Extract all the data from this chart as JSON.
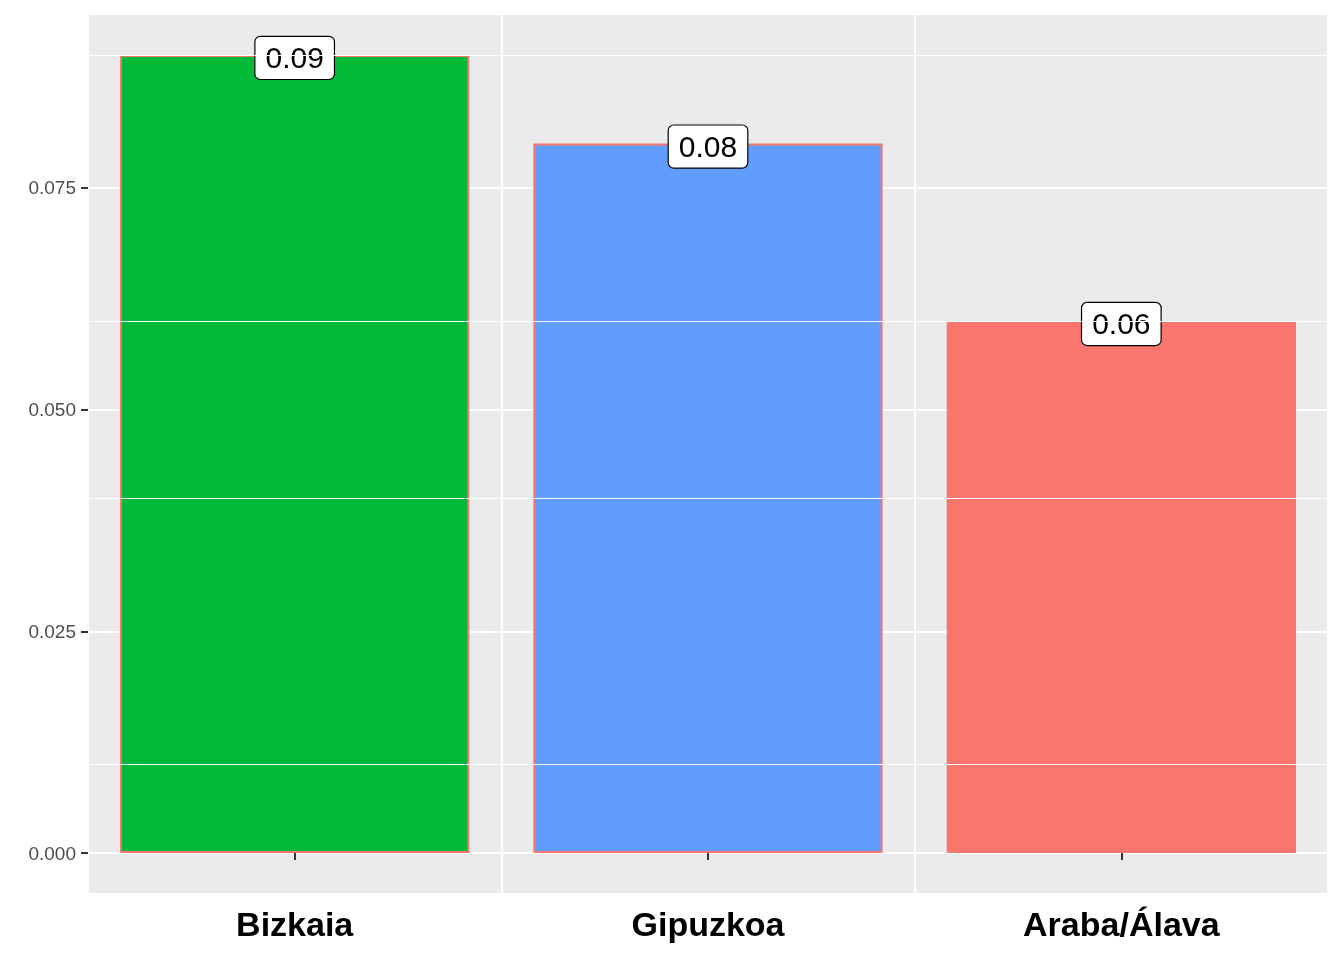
{
  "chart_data": {
    "type": "bar",
    "categories": [
      "Bizkaia",
      "Gipuzkoa",
      "Araba/Álava"
    ],
    "values": [
      0.09,
      0.08,
      0.06
    ],
    "colors": [
      "#00ba38",
      "#619cff",
      "#f8766d"
    ],
    "ylim": [
      -0.0045,
      0.0945
    ],
    "yticks": [
      {
        "value": 0,
        "label": "0.000"
      },
      {
        "value": 0.025,
        "label": "0.025"
      },
      {
        "value": 0.05,
        "label": "0.050"
      },
      {
        "value": 0.075,
        "label": "0.075"
      }
    ],
    "grid": true,
    "data_labels": true
  }
}
